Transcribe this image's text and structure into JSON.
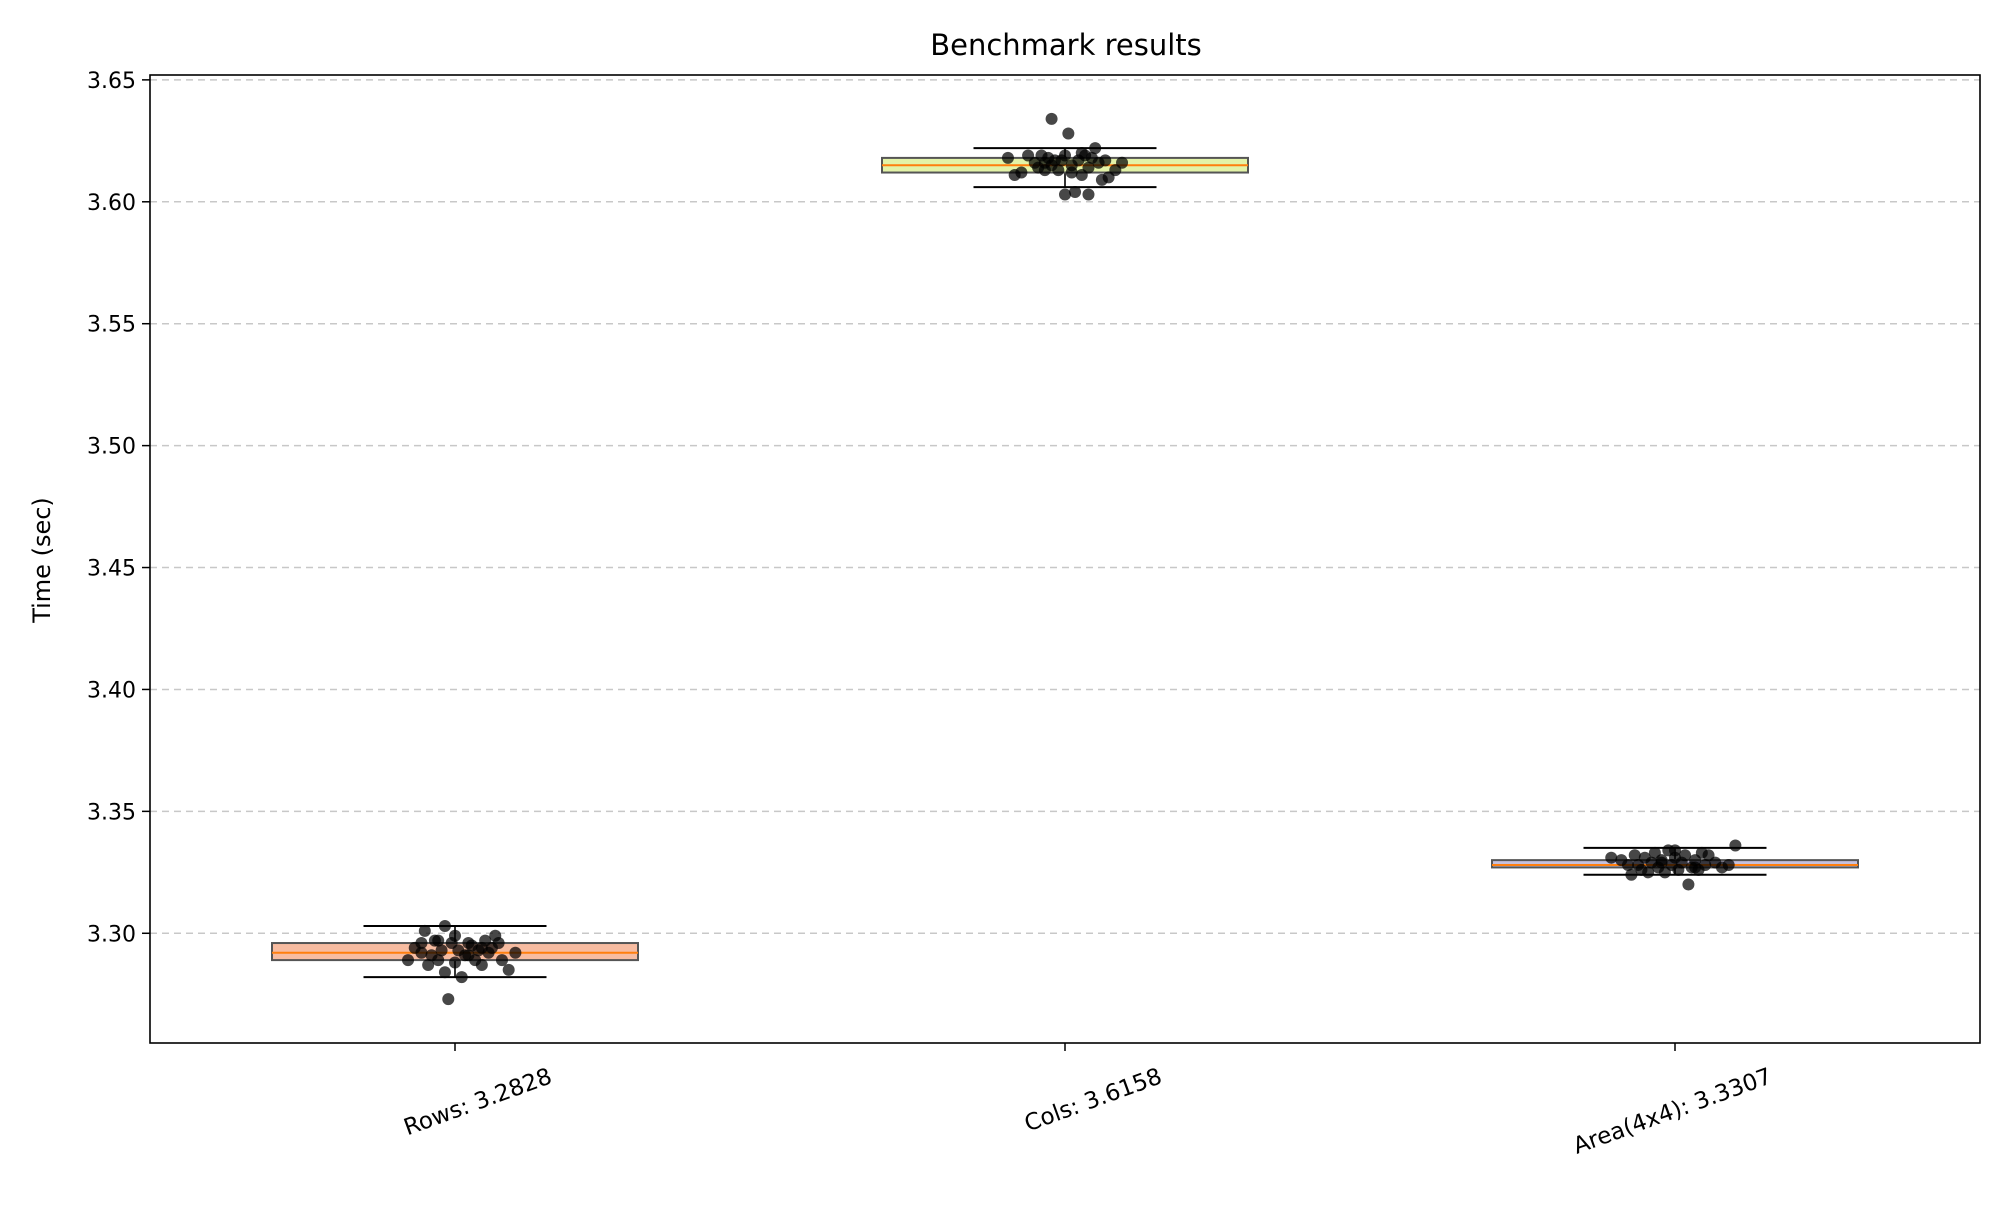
{
  "chart_data": {
    "type": "box",
    "title": "Benchmark results",
    "xlabel": "",
    "ylabel": "Time (sec)",
    "ylim": [
      3.255,
      3.652
    ],
    "yticks": [
      "3.30",
      "3.35",
      "3.40",
      "3.45",
      "3.50",
      "3.55",
      "3.60",
      "3.65"
    ],
    "ytick_values": [
      3.3,
      3.35,
      3.4,
      3.45,
      3.5,
      3.55,
      3.6,
      3.65
    ],
    "grid": {
      "y": true,
      "style": "dashed",
      "color": "#c8c8c8"
    },
    "median_color": "#ff7f0e",
    "categories": [
      "Rows: 3.2828",
      "Cols: 3.6158",
      "Area(4x4): 3.3307"
    ],
    "boxes": [
      {
        "label": "Rows: 3.2828",
        "fill": "#f4a582",
        "whisker_low": 3.282,
        "q1": 3.289,
        "median": 3.292,
        "q3": 3.296,
        "whisker_high": 3.303,
        "points": [
          [
            -0.14,
            3.289
          ],
          [
            -0.12,
            3.294
          ],
          [
            -0.1,
            3.296
          ],
          [
            -0.09,
            3.301
          ],
          [
            -0.08,
            3.287
          ],
          [
            -0.07,
            3.291
          ],
          [
            -0.06,
            3.297
          ],
          [
            -0.05,
            3.289
          ],
          [
            -0.04,
            3.293
          ],
          [
            -0.03,
            3.303
          ],
          [
            -0.03,
            3.284
          ],
          [
            -0.02,
            3.273
          ],
          [
            -0.01,
            3.296
          ],
          [
            0.0,
            3.299
          ],
          [
            0.0,
            3.288
          ],
          [
            0.01,
            3.293
          ],
          [
            0.02,
            3.282
          ],
          [
            0.03,
            3.291
          ],
          [
            0.04,
            3.296
          ],
          [
            0.05,
            3.295
          ],
          [
            0.06,
            3.289
          ],
          [
            0.07,
            3.293
          ],
          [
            0.08,
            3.287
          ],
          [
            0.09,
            3.297
          ],
          [
            0.1,
            3.292
          ],
          [
            0.11,
            3.294
          ],
          [
            0.12,
            3.299
          ],
          [
            0.13,
            3.296
          ],
          [
            0.14,
            3.289
          ],
          [
            0.16,
            3.285
          ],
          [
            0.18,
            3.292
          ],
          [
            -0.05,
            3.297
          ],
          [
            0.04,
            3.291
          ],
          [
            0.08,
            3.294
          ],
          [
            -0.1,
            3.292
          ]
        ]
      },
      {
        "label": "Cols: 3.6158",
        "fill": "#d9ef8b",
        "whisker_low": 3.606,
        "q1": 3.612,
        "median": 3.615,
        "q3": 3.618,
        "whisker_high": 3.622,
        "points": [
          [
            -0.17,
            3.618
          ],
          [
            -0.15,
            3.611
          ],
          [
            -0.13,
            3.612
          ],
          [
            -0.11,
            3.619
          ],
          [
            -0.09,
            3.616
          ],
          [
            -0.08,
            3.614
          ],
          [
            -0.07,
            3.619
          ],
          [
            -0.06,
            3.613
          ],
          [
            -0.05,
            3.618
          ],
          [
            -0.04,
            3.615
          ],
          [
            -0.04,
            3.634
          ],
          [
            -0.03,
            3.617
          ],
          [
            -0.02,
            3.613
          ],
          [
            -0.01,
            3.617
          ],
          [
            0.0,
            3.619
          ],
          [
            0.0,
            3.603
          ],
          [
            0.01,
            3.628
          ],
          [
            0.02,
            3.615
          ],
          [
            0.03,
            3.604
          ],
          [
            0.04,
            3.617
          ],
          [
            0.05,
            3.611
          ],
          [
            0.06,
            3.619
          ],
          [
            0.07,
            3.614
          ],
          [
            0.07,
            3.603
          ],
          [
            0.08,
            3.618
          ],
          [
            0.09,
            3.622
          ],
          [
            0.1,
            3.616
          ],
          [
            0.11,
            3.609
          ],
          [
            0.13,
            3.61
          ],
          [
            0.15,
            3.613
          ],
          [
            0.17,
            3.616
          ],
          [
            0.02,
            3.612
          ],
          [
            -0.06,
            3.616
          ],
          [
            0.05,
            3.62
          ],
          [
            0.12,
            3.617
          ]
        ]
      },
      {
        "label": "Area(4x4): 3.3307",
        "fill": "#b2abd2",
        "whisker_low": 3.324,
        "q1": 3.327,
        "median": 3.328,
        "q3": 3.33,
        "whisker_high": 3.335,
        "points": [
          [
            -0.19,
            3.331
          ],
          [
            -0.16,
            3.33
          ],
          [
            -0.14,
            3.328
          ],
          [
            -0.13,
            3.324
          ],
          [
            -0.12,
            3.332
          ],
          [
            -0.1,
            3.326
          ],
          [
            -0.09,
            3.331
          ],
          [
            -0.08,
            3.325
          ],
          [
            -0.07,
            3.329
          ],
          [
            -0.06,
            3.333
          ],
          [
            -0.05,
            3.327
          ],
          [
            -0.04,
            3.33
          ],
          [
            -0.03,
            3.325
          ],
          [
            -0.02,
            3.334
          ],
          [
            -0.01,
            3.328
          ],
          [
            0.0,
            3.331
          ],
          [
            0.01,
            3.326
          ],
          [
            0.02,
            3.329
          ],
          [
            0.03,
            3.332
          ],
          [
            0.04,
            3.32
          ],
          [
            0.05,
            3.327
          ],
          [
            0.06,
            3.33
          ],
          [
            0.07,
            3.326
          ],
          [
            0.08,
            3.333
          ],
          [
            0.09,
            3.328
          ],
          [
            0.1,
            3.332
          ],
          [
            0.12,
            3.329
          ],
          [
            0.14,
            3.327
          ],
          [
            0.16,
            3.328
          ],
          [
            0.18,
            3.336
          ],
          [
            -0.11,
            3.328
          ],
          [
            0.0,
            3.334
          ],
          [
            0.06,
            3.327
          ],
          [
            -0.04,
            3.329
          ]
        ]
      }
    ]
  }
}
